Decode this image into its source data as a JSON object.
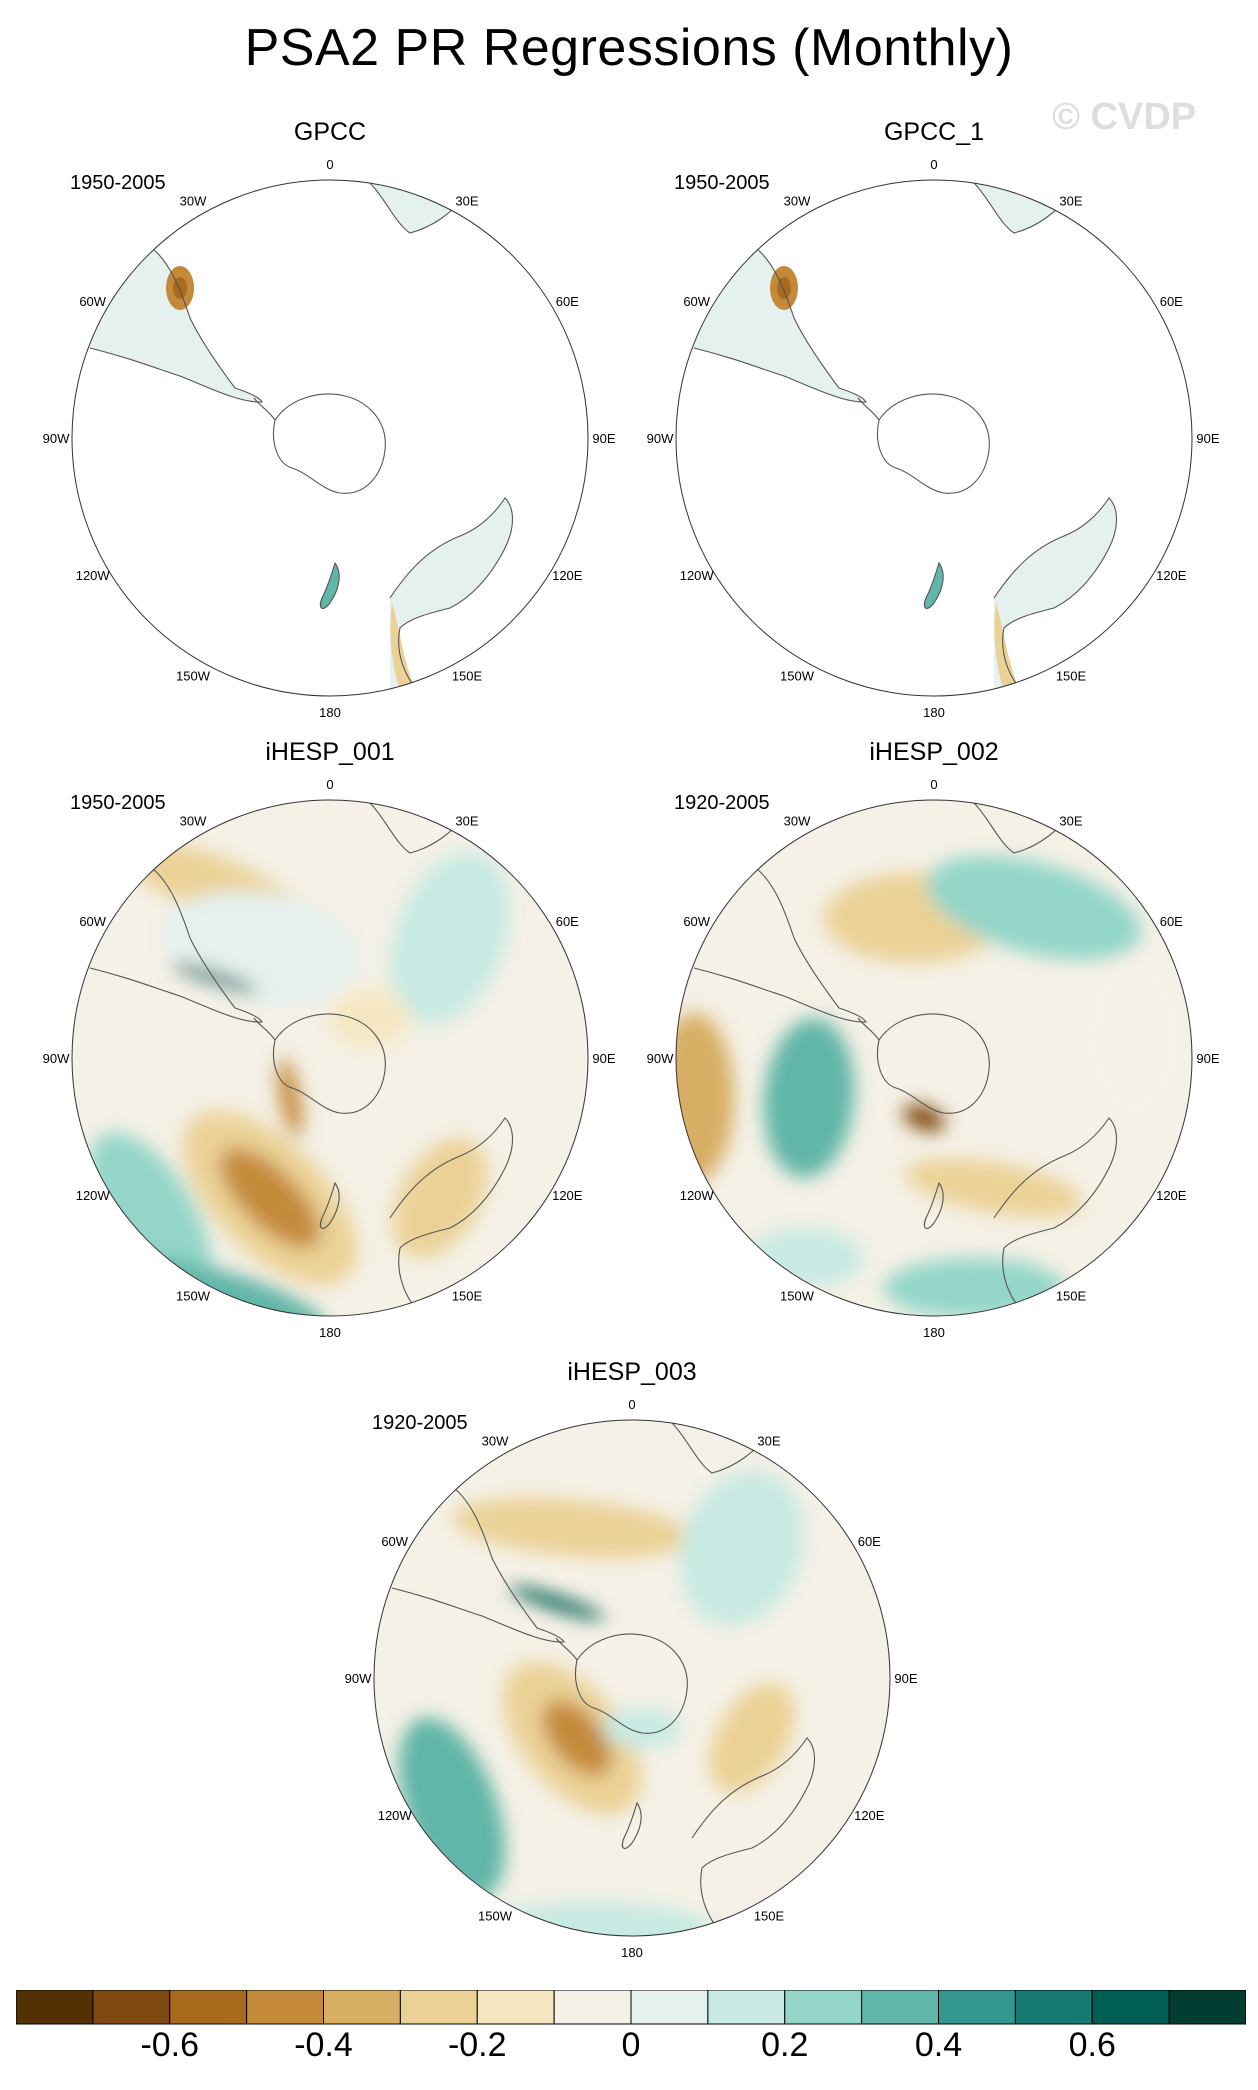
{
  "title": "PSA2 PR Regressions (Monthly)",
  "watermark": "© CVDP",
  "colors": {
    "levels": [
      "#543005",
      "#7f4a10",
      "#a86a1c",
      "#c48a3a",
      "#d7ae63",
      "#ebd196",
      "#f6e7c3",
      "#f5f1e6",
      "#e4f1ef",
      "#c8eae3",
      "#93d5c9",
      "#60b6a8",
      "#34978f",
      "#167a72",
      "#015e53",
      "#003c30"
    ],
    "coast": "#555555",
    "frame": "#333333"
  },
  "longitude_labels": [
    "0",
    "30E",
    "60E",
    "90E",
    "120E",
    "150E",
    "180",
    "150W",
    "120W",
    "90W",
    "60W",
    "30W"
  ],
  "panels": [
    {
      "name": "GPCC",
      "period": "1950-2005",
      "coverage": "land-only"
    },
    {
      "name": "GPCC_1",
      "period": "1950-2005",
      "coverage": "land-only"
    },
    {
      "name": "iHESP_001",
      "period": "1950-2005",
      "coverage": "global"
    },
    {
      "name": "iHESP_002",
      "period": "1920-2005",
      "coverage": "global"
    },
    {
      "name": "iHESP_003",
      "period": "1920-2005",
      "coverage": "global"
    }
  ],
  "colorbar": {
    "labels": [
      "-0.6",
      "-0.4",
      "-0.2",
      "0",
      "0.2",
      "0.4",
      "0.6"
    ],
    "boundaries": [
      -0.7,
      -0.6,
      -0.5,
      -0.4,
      -0.3,
      -0.2,
      -0.1,
      0,
      0.1,
      0.2,
      0.3,
      0.4,
      0.5,
      0.6,
      0.7
    ]
  }
}
